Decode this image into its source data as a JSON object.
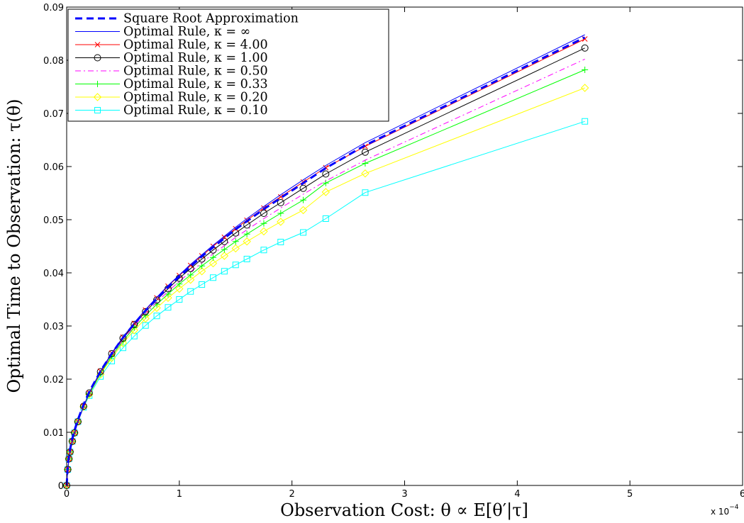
{
  "chart_data": {
    "type": "line",
    "xlabel": "Observation Cost: θ ∝ E[θ′|τ]",
    "ylabel": "Optimal Time to Observation: τ(θ)",
    "x_scale_label": "x 10",
    "x_scale_exponent": "−4",
    "xlim": [
      0,
      6
    ],
    "ylim": [
      0,
      0.09
    ],
    "x_ticks": [
      "0",
      "1",
      "2",
      "3",
      "4",
      "5",
      "6"
    ],
    "y_ticks": [
      "0",
      "0.01",
      "0.02",
      "0.03",
      "0.04",
      "0.05",
      "0.06",
      "0.07",
      "0.08",
      "0.09"
    ],
    "grid": false,
    "legend_position": "top-left",
    "x": [
      0,
      0.01,
      0.02,
      0.03,
      0.05,
      0.07,
      0.1,
      0.15,
      0.2,
      0.3,
      0.4,
      0.5,
      0.6,
      0.7,
      0.8,
      0.9,
      1.0,
      1.1,
      1.2,
      1.3,
      1.4,
      1.5,
      1.6,
      1.75,
      1.9,
      2.1,
      2.3,
      2.65,
      4.6
    ],
    "series": [
      {
        "name": "Square Root Approximation",
        "color": "#0000ff",
        "style": "dashed",
        "marker": "none",
        "values": [
          0.0,
          0.0039,
          0.0055,
          0.0068,
          0.0088,
          0.0104,
          0.0124,
          0.0152,
          0.0176,
          0.0215,
          0.0248,
          0.0278,
          0.0304,
          0.0329,
          0.0351,
          0.0373,
          0.0393,
          0.0412,
          0.0431,
          0.0448,
          0.0465,
          0.0482,
          0.0497,
          0.052,
          0.0541,
          0.0569,
          0.0597,
          0.064,
          0.0843
        ]
      },
      {
        "name": "Optimal Rule, κ = ∞",
        "color": "#0000ff",
        "style": "solid",
        "marker": "none",
        "values": [
          0.0,
          0.003,
          0.005,
          0.0063,
          0.0083,
          0.0099,
          0.012,
          0.0149,
          0.0174,
          0.0215,
          0.0249,
          0.0279,
          0.0306,
          0.0331,
          0.0354,
          0.0376,
          0.0396,
          0.0416,
          0.0434,
          0.0452,
          0.0469,
          0.0486,
          0.0502,
          0.0525,
          0.0547,
          0.0575,
          0.0602,
          0.0645,
          0.0848
        ]
      },
      {
        "name": "Optimal Rule, κ = 4.00",
        "color": "#ff0000",
        "style": "solid",
        "marker": "x",
        "values": [
          0.0,
          0.003,
          0.005,
          0.0063,
          0.0083,
          0.0099,
          0.012,
          0.0149,
          0.0174,
          0.0215,
          0.0249,
          0.0279,
          0.0305,
          0.033,
          0.0353,
          0.0375,
          0.0395,
          0.0414,
          0.0432,
          0.045,
          0.0467,
          0.0483,
          0.0499,
          0.0522,
          0.0543,
          0.0571,
          0.0598,
          0.0638,
          0.084
        ]
      },
      {
        "name": "Optimal Rule, κ = 1.00",
        "color": "#000000",
        "style": "solid",
        "marker": "circle",
        "values": [
          0.0,
          0.003,
          0.005,
          0.0063,
          0.0083,
          0.0099,
          0.012,
          0.0149,
          0.0174,
          0.0214,
          0.0248,
          0.0277,
          0.0303,
          0.0327,
          0.0349,
          0.037,
          0.039,
          0.0408,
          0.0426,
          0.0443,
          0.0459,
          0.0475,
          0.049,
          0.0512,
          0.0532,
          0.0559,
          0.0586,
          0.0627,
          0.0823
        ]
      },
      {
        "name": "Optimal Rule, κ = 0.50",
        "color": "#ff00ff",
        "style": "dashdot",
        "marker": "none",
        "values": [
          0.0,
          0.003,
          0.005,
          0.0063,
          0.0083,
          0.0099,
          0.012,
          0.0148,
          0.0173,
          0.0212,
          0.0245,
          0.0274,
          0.03,
          0.0323,
          0.0345,
          0.0365,
          0.0384,
          0.0402,
          0.0419,
          0.0436,
          0.0451,
          0.0467,
          0.0481,
          0.0502,
          0.0522,
          0.0548,
          0.0573,
          0.0612,
          0.0802
        ]
      },
      {
        "name": "Optimal Rule, κ = 0.33",
        "color": "#00ff00",
        "style": "solid",
        "marker": "plus",
        "values": [
          0.0,
          0.003,
          0.005,
          0.0063,
          0.0083,
          0.0099,
          0.012,
          0.0148,
          0.0172,
          0.0211,
          0.0243,
          0.0272,
          0.0297,
          0.032,
          0.0341,
          0.036,
          0.0379,
          0.0396,
          0.0413,
          0.0429,
          0.0444,
          0.0459,
          0.0473,
          0.0493,
          0.0512,
          0.0537,
          0.0569,
          0.0606,
          0.0782
        ]
      },
      {
        "name": "Optimal Rule, κ = 0.20",
        "color": "#ffff00",
        "style": "solid",
        "marker": "diamond",
        "values": [
          0.0,
          0.003,
          0.005,
          0.0063,
          0.0083,
          0.0099,
          0.012,
          0.0148,
          0.0171,
          0.0209,
          0.024,
          0.0268,
          0.0292,
          0.0314,
          0.0334,
          0.0353,
          0.037,
          0.0387,
          0.0403,
          0.0418,
          0.0432,
          0.0446,
          0.0459,
          0.0478,
          0.0496,
          0.0518,
          0.0552,
          0.0587,
          0.0748
        ]
      },
      {
        "name": "Optimal Rule, κ = 0.10",
        "color": "#00ffff",
        "style": "solid",
        "marker": "square",
        "values": [
          0.0,
          0.003,
          0.005,
          0.0063,
          0.0083,
          0.0099,
          0.012,
          0.0147,
          0.0169,
          0.0205,
          0.0234,
          0.0259,
          0.0281,
          0.0301,
          0.0319,
          0.0335,
          0.035,
          0.0365,
          0.0378,
          0.0391,
          0.0403,
          0.0415,
          0.0426,
          0.0443,
          0.0458,
          0.0476,
          0.0502,
          0.0551,
          0.0685
        ]
      }
    ]
  }
}
